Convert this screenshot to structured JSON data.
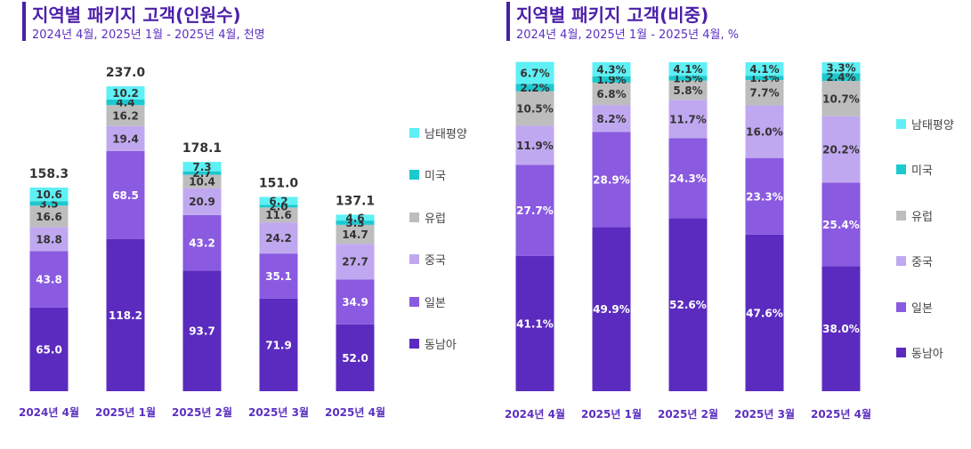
{
  "colors": {
    "동남아": "#5b2bbf",
    "일본": "#8a5ae0",
    "중국": "#c0a8f0",
    "유럽": "#bdbdbd",
    "미국": "#1cc9cf",
    "남태평양": "#5ef0f4",
    "title": "#4b1fa8",
    "category_label": "#5b2fc0"
  },
  "legend": [
    "남태평양",
    "미국",
    "유럽",
    "중국",
    "일본",
    "동남아"
  ],
  "charts": {
    "left": {
      "title": "지역별 패키지 고객(인원수)",
      "subtitle": "2024년 4월, 2025년 1월 - 2025년 4월, 천명"
    },
    "right": {
      "title": "지역별 패키지 고객(비중)",
      "subtitle": "2024년 4월, 2025년 1월 - 2025년 4월, %"
    }
  },
  "chart_data": [
    {
      "type": "bar",
      "stacked": true,
      "title": "지역별 패키지 고객(인원수)",
      "subtitle": "2024년 4월, 2025년 1월 - 2025년 4월, 천명",
      "categories": [
        "2024년 4월",
        "2025년 1월",
        "2025년 2월",
        "2025년 3월",
        "2025년 4월"
      ],
      "totals": [
        "158.3",
        "237.0",
        "178.1",
        "151.0",
        "137.1"
      ],
      "ylim": [
        0,
        237.0
      ],
      "series": [
        {
          "name": "동남아",
          "values": [
            65.0,
            118.2,
            93.7,
            71.9,
            52.0
          ]
        },
        {
          "name": "일본",
          "values": [
            43.8,
            68.5,
            43.2,
            35.1,
            34.9
          ]
        },
        {
          "name": "중국",
          "values": [
            18.8,
            19.4,
            20.9,
            24.2,
            27.7
          ]
        },
        {
          "name": "유럽",
          "values": [
            16.6,
            16.2,
            10.4,
            11.6,
            14.7
          ]
        },
        {
          "name": "미국",
          "values": [
            3.5,
            4.4,
            2.7,
            2.0,
            3.3
          ]
        },
        {
          "name": "남태평양",
          "values": [
            10.6,
            10.2,
            7.3,
            6.2,
            4.6
          ]
        }
      ],
      "value_format": "decimal",
      "legend_position": "right"
    },
    {
      "type": "bar",
      "stacked": true,
      "title": "지역별 패키지 고객(비중)",
      "subtitle": "2024년 4월, 2025년 1월 - 2025년 4월, %",
      "categories": [
        "2024년 4월",
        "2025년 1월",
        "2025년 2월",
        "2025년 3월",
        "2025년 4월"
      ],
      "ylim": [
        0,
        100
      ],
      "series": [
        {
          "name": "동남아",
          "values": [
            41.1,
            49.9,
            52.6,
            47.6,
            38.0
          ]
        },
        {
          "name": "일본",
          "values": [
            27.7,
            28.9,
            24.3,
            23.3,
            25.4
          ]
        },
        {
          "name": "중국",
          "values": [
            11.9,
            8.2,
            11.7,
            16.0,
            20.2
          ]
        },
        {
          "name": "유럽",
          "values": [
            10.5,
            6.8,
            5.8,
            7.7,
            10.7
          ]
        },
        {
          "name": "미국",
          "values": [
            2.2,
            1.9,
            1.5,
            1.3,
            2.4
          ]
        },
        {
          "name": "남태평양",
          "values": [
            6.7,
            4.3,
            4.1,
            4.1,
            3.3
          ]
        }
      ],
      "value_format": "percent",
      "legend_position": "right"
    }
  ]
}
